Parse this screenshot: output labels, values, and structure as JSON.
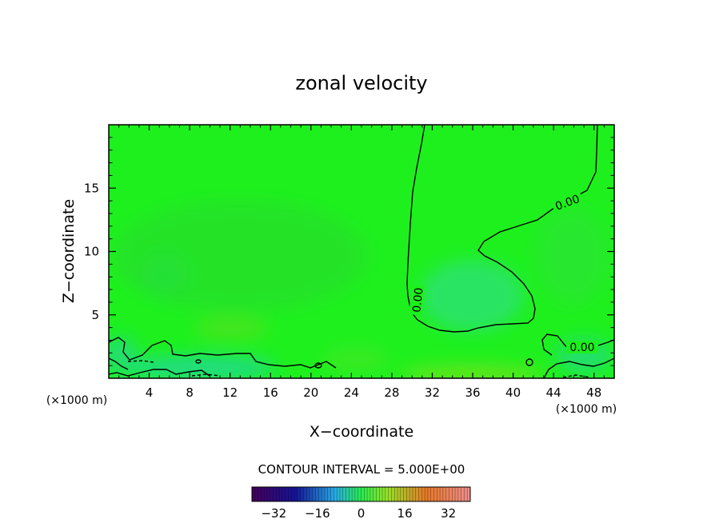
{
  "chart_data": {
    "type": "heatmap",
    "title": "zonal velocity",
    "xlabel": "X−coordinate",
    "ylabel": "Z−coordinate",
    "xunit": "(×1000 m)",
    "xlim": [
      0,
      50
    ],
    "ylim": [
      0,
      20
    ],
    "x_ticks": [
      4,
      8,
      12,
      16,
      20,
      24,
      28,
      32,
      36,
      40,
      44,
      48
    ],
    "y_ticks": [
      5,
      10,
      15
    ],
    "contour_interval_label": "CONTOUR INTERVAL = 5.000E+00",
    "contour_labels": [
      "0.00",
      "0.00",
      "0.00"
    ],
    "colorbar": {
      "min": -40,
      "max": 40,
      "ticks": [
        -32,
        -16,
        0,
        16,
        32
      ],
      "tick_labels": [
        "−32",
        "−16",
        "0",
        "16",
        "32"
      ]
    },
    "field_note": "velocity near 0 across domain; weak positive patches (~2-5) near surface 34-42 km",
    "colors": {
      "background_field": "#1ef01e",
      "contour_line": "#000000"
    }
  }
}
